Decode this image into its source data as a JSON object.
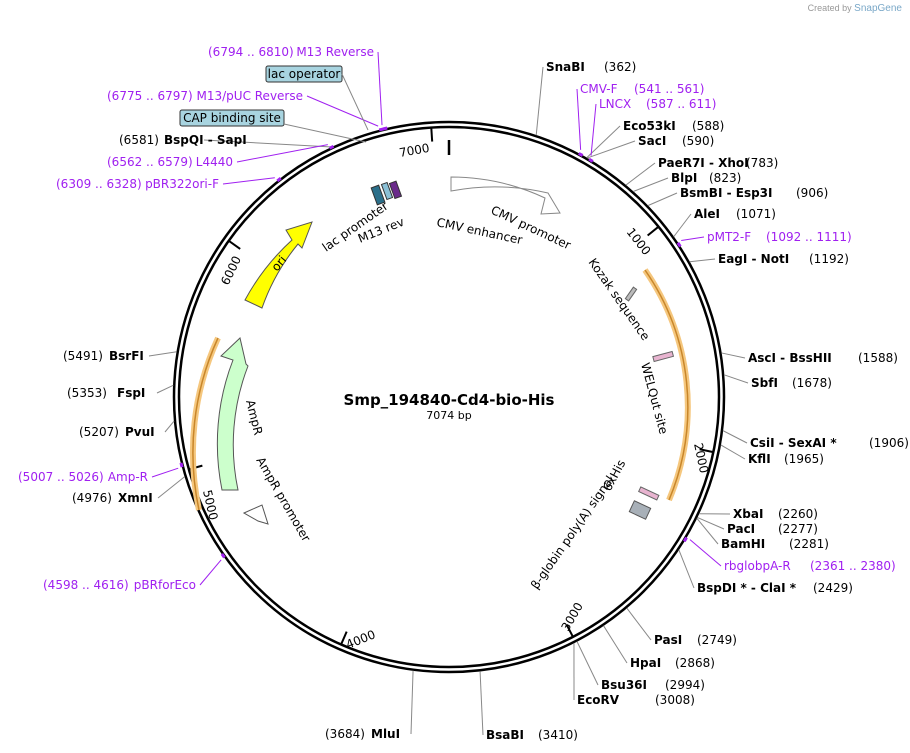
{
  "brand": {
    "created_by": "Created by",
    "name": "SnapGene"
  },
  "plasmid": {
    "name": "Smp_194840-Cd4-bio-His",
    "length_label": "7074 bp",
    "length": 7074
  },
  "colors": {
    "primer": "#a020f0",
    "ori": "#ffff00",
    "ampr": "#ccffcc",
    "orf_highlight": "#f5c77e",
    "box_feature": "#a8d4e0"
  },
  "ticks": [
    {
      "pos": 1000,
      "label": "1000"
    },
    {
      "pos": 2000,
      "label": "2000"
    },
    {
      "pos": 3000,
      "label": "3000"
    },
    {
      "pos": 4000,
      "label": "4000"
    },
    {
      "pos": 5000,
      "label": "5000"
    },
    {
      "pos": 6000,
      "label": "6000"
    },
    {
      "pos": 7000,
      "label": "7000"
    }
  ],
  "enzymes": [
    {
      "name": "SnaBI",
      "pos": "(362)",
      "site": 362
    },
    {
      "name": "Eco53kI",
      "pos": "(588)",
      "site": 588
    },
    {
      "name": "SacI",
      "pos": "(590)",
      "site": 590
    },
    {
      "name": "PaeR7I  - XhoI",
      "pos": "(783)",
      "site": 783
    },
    {
      "name": "BlpI",
      "pos": "(823)",
      "site": 823
    },
    {
      "name": "BsmBI  - Esp3I",
      "pos": "(906)",
      "site": 906
    },
    {
      "name": "AleI",
      "pos": "(1071)",
      "site": 1071
    },
    {
      "name": "EagI  - NotI",
      "pos": "(1192)",
      "site": 1192
    },
    {
      "name": "AscI  - BssHII",
      "pos": "(1588)",
      "site": 1588
    },
    {
      "name": "SbfI",
      "pos": "(1678)",
      "site": 1678
    },
    {
      "name": "CsiI  - SexAI *",
      "pos": "(1906)",
      "site": 1906
    },
    {
      "name": "KflI",
      "pos": "(1965)",
      "site": 1965
    },
    {
      "name": "XbaI",
      "pos": "(2260)",
      "site": 2260
    },
    {
      "name": "PacI",
      "pos": "(2277)",
      "site": 2277
    },
    {
      "name": "BamHI",
      "pos": "(2281)",
      "site": 2281
    },
    {
      "name": "BspDI *  - ClaI *",
      "pos": "(2429)",
      "site": 2429
    },
    {
      "name": "PasI",
      "pos": "(2749)",
      "site": 2749
    },
    {
      "name": "HpaI",
      "pos": "(2868)",
      "site": 2868
    },
    {
      "name": "Bsu36I",
      "pos": "(2994)",
      "site": 2994
    },
    {
      "name": "EcoRV",
      "pos": "(3008)",
      "site": 3008
    },
    {
      "name": "BsaBI",
      "pos": "(3410)",
      "site": 3410
    },
    {
      "name": "MluI",
      "pos": "(3684)",
      "site": 3684
    },
    {
      "name": "XmnI",
      "pos": "(4976)",
      "site": 4976
    },
    {
      "name": "PvuI",
      "pos": "(5207)",
      "site": 5207
    },
    {
      "name": "FspI",
      "pos": "(5353)",
      "site": 5353
    },
    {
      "name": "BsrFI",
      "pos": "(5491)",
      "site": 5491
    },
    {
      "name": "BspQI  - SapI",
      "pos": "(6581)",
      "site": 6581
    }
  ],
  "primers": [
    {
      "name": "CMV-F",
      "range": "(541 .. 561)",
      "site": 551
    },
    {
      "name": "LNCX",
      "range": "(587 .. 611)",
      "site": 599
    },
    {
      "name": "pMT2-F",
      "range": "(1092 .. 1111)",
      "site": 1101
    },
    {
      "name": "rbglobpA-R",
      "range": "(2361 .. 2380)",
      "site": 2370
    },
    {
      "name": "pBRforEco",
      "range": "(4598 .. 4616)",
      "site": 4607
    },
    {
      "name": "Amp-R",
      "range": "(5007 .. 5026)",
      "site": 5016
    },
    {
      "name": "pBR322ori-F",
      "range": "(6309 .. 6328)",
      "site": 6318
    },
    {
      "name": "L4440",
      "range": "(6562 .. 6579)",
      "site": 6570
    },
    {
      "name": "M13/pUC Reverse",
      "range": "(6775 .. 6797)",
      "site": 6786
    },
    {
      "name": "M13 Reverse",
      "range": "(6794 .. 6810)",
      "site": 6802
    }
  ],
  "box_features": [
    {
      "name": "lac operator"
    },
    {
      "name": "CAP binding site"
    }
  ],
  "features": [
    {
      "name": "CMV enhancer"
    },
    {
      "name": "CMV promoter"
    },
    {
      "name": "Kozak sequence"
    },
    {
      "name": "WELQut site"
    },
    {
      "name": "6xHis"
    },
    {
      "name": "β-globin poly(A) signal"
    },
    {
      "name": "AmpR promoter"
    },
    {
      "name": "AmpR"
    },
    {
      "name": "ori"
    },
    {
      "name": "lac promoter"
    },
    {
      "name": "M13 rev"
    }
  ]
}
